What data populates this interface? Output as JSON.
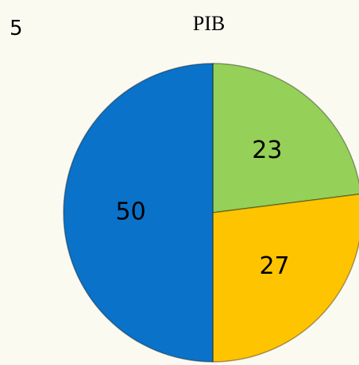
{
  "slide_number": 5,
  "chart_data": {
    "type": "pie",
    "title": "PIB",
    "values": [
      23,
      27,
      50
    ],
    "colors": [
      "#95d058",
      "#ffc400",
      "#0a72c8"
    ],
    "start_angle": 0,
    "direction": "clockwise"
  }
}
